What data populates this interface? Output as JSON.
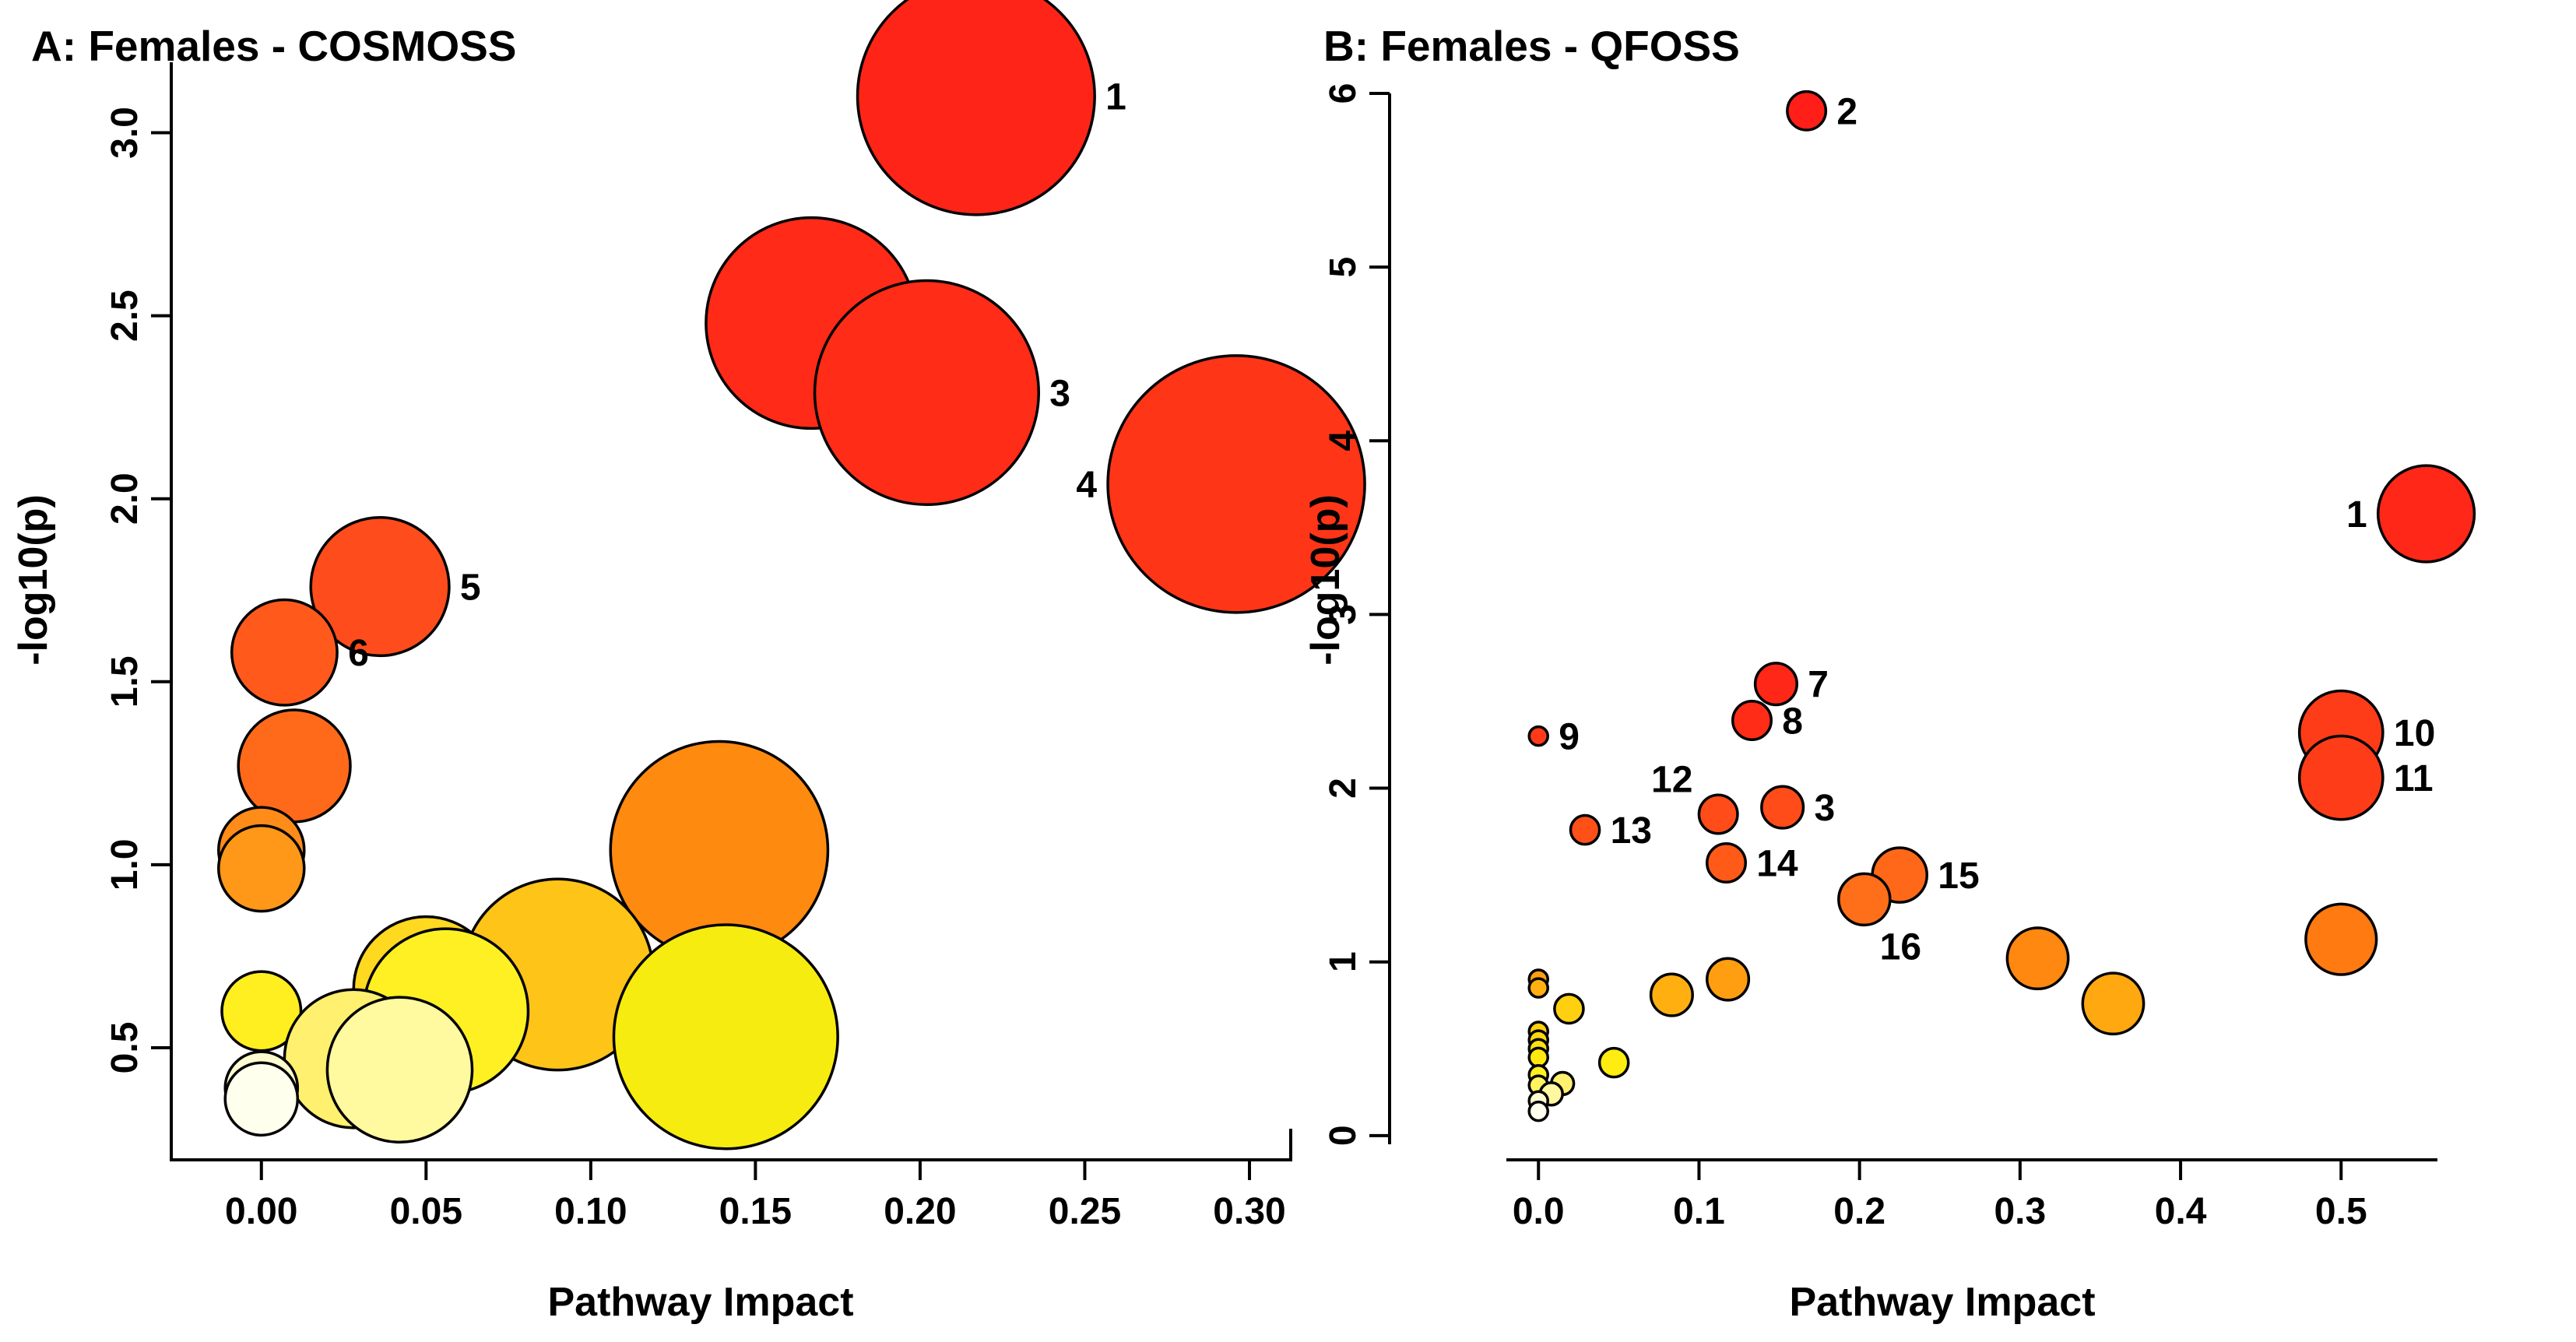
{
  "chart_data": [
    {
      "type": "scatter",
      "title": "A: Females - COSMOSS",
      "xlabel": "Pathway Impact",
      "ylabel": "-log10(p)",
      "xlim": [
        -0.012,
        0.3
      ],
      "ylim": [
        0.3,
        3.15
      ],
      "xticks": [
        {
          "v": 0.0,
          "label": "0.00"
        },
        {
          "v": 0.05,
          "label": "0.05"
        },
        {
          "v": 0.1,
          "label": "0.10"
        },
        {
          "v": 0.15,
          "label": "0.15"
        },
        {
          "v": 0.2,
          "label": "0.20"
        },
        {
          "v": 0.25,
          "label": "0.25"
        },
        {
          "v": 0.3,
          "label": "0.30"
        }
      ],
      "yticks": [
        {
          "v": 0.5,
          "label": "0.5"
        },
        {
          "v": 1.0,
          "label": "1.0"
        },
        {
          "v": 1.5,
          "label": "1.5"
        },
        {
          "v": 2.0,
          "label": "2.0"
        },
        {
          "v": 2.5,
          "label": "2.5"
        },
        {
          "v": 3.0,
          "label": "3.0"
        }
      ],
      "points": [
        {
          "x": 0.217,
          "y": 3.1,
          "r": 0.036,
          "color": "#ff2418",
          "label": "1",
          "pos": "right"
        },
        {
          "x": 0.167,
          "y": 2.48,
          "r": 0.032,
          "color": "#ff2a18",
          "label": "2",
          "pos": "right"
        },
        {
          "x": 0.202,
          "y": 2.29,
          "r": 0.034,
          "color": "#ff2c18",
          "label": "3",
          "pos": "right"
        },
        {
          "x": 0.296,
          "y": 2.04,
          "r": 0.039,
          "color": "#ff3518",
          "label": "4",
          "pos": "left"
        },
        {
          "x": 0.036,
          "y": 1.76,
          "r": 0.021,
          "color": "#ff4c1c",
          "label": "5",
          "pos": "right"
        },
        {
          "x": 0.007,
          "y": 1.58,
          "r": 0.016,
          "color": "#ff5a1c",
          "label": "6",
          "pos": "right"
        },
        {
          "x": 0.01,
          "y": 1.27,
          "r": 0.017,
          "color": "#ff6a1a",
          "label": "",
          "pos": "none"
        },
        {
          "x": 0.0,
          "y": 1.04,
          "r": 0.013,
          "color": "#ff8c18",
          "label": "",
          "pos": "none"
        },
        {
          "x": 0.0,
          "y": 0.99,
          "r": 0.013,
          "color": "#ff9818",
          "label": "",
          "pos": "none"
        },
        {
          "x": 0.139,
          "y": 1.04,
          "r": 0.033,
          "color": "#ff8a10",
          "label": "",
          "pos": "none"
        },
        {
          "x": 0.09,
          "y": 0.7,
          "r": 0.029,
          "color": "#ffc418",
          "label": "",
          "pos": "none"
        },
        {
          "x": 0.05,
          "y": 0.66,
          "r": 0.022,
          "color": "#ffd820",
          "label": "",
          "pos": "none"
        },
        {
          "x": 0.056,
          "y": 0.6,
          "r": 0.025,
          "color": "#fff024",
          "label": "",
          "pos": "none"
        },
        {
          "x": 0.141,
          "y": 0.53,
          "r": 0.034,
          "color": "#f6ec10",
          "label": "",
          "pos": "none"
        },
        {
          "x": 0.0,
          "y": 0.6,
          "r": 0.012,
          "color": "#ffee20",
          "label": "",
          "pos": "none"
        },
        {
          "x": 0.028,
          "y": 0.47,
          "r": 0.021,
          "color": "#fff070",
          "label": "",
          "pos": "none"
        },
        {
          "x": 0.042,
          "y": 0.44,
          "r": 0.022,
          "color": "#fff9a0",
          "label": "",
          "pos": "none"
        },
        {
          "x": 0.0,
          "y": 0.39,
          "r": 0.011,
          "color": "#fffbd0",
          "label": "",
          "pos": "none"
        },
        {
          "x": 0.0,
          "y": 0.36,
          "r": 0.011,
          "color": "#ffffee",
          "label": "",
          "pos": "none"
        }
      ]
    },
    {
      "type": "scatter",
      "title": "B: Females - QFOSS",
      "xlabel": "Pathway Impact",
      "ylabel": "-log10(p)",
      "xlim": [
        -0.02,
        0.56
      ],
      "ylim": [
        -0.05,
        6.0
      ],
      "xticks": [
        {
          "v": 0.0,
          "label": "0.0"
        },
        {
          "v": 0.1,
          "label": "0.1"
        },
        {
          "v": 0.2,
          "label": "0.2"
        },
        {
          "v": 0.3,
          "label": "0.3"
        },
        {
          "v": 0.4,
          "label": "0.4"
        },
        {
          "v": 0.5,
          "label": "0.5"
        }
      ],
      "yticks": [
        {
          "v": 0,
          "label": "0"
        },
        {
          "v": 1,
          "label": "1"
        },
        {
          "v": 2,
          "label": "2"
        },
        {
          "v": 3,
          "label": "3"
        },
        {
          "v": 4,
          "label": "4"
        },
        {
          "v": 5,
          "label": "5"
        },
        {
          "v": 6,
          "label": "6"
        }
      ],
      "points": [
        {
          "x": 0.167,
          "y": 5.9,
          "r": 0.012,
          "color": "#ff1e18",
          "label": "2",
          "pos": "right"
        },
        {
          "x": 0.553,
          "y": 3.58,
          "r": 0.03,
          "color": "#ff2818",
          "label": "1",
          "pos": "left"
        },
        {
          "x": 0.148,
          "y": 2.6,
          "r": 0.013,
          "color": "#ff2818",
          "label": "7",
          "pos": "right"
        },
        {
          "x": 0.133,
          "y": 2.39,
          "r": 0.012,
          "color": "#ff2c18",
          "label": "8",
          "pos": "right"
        },
        {
          "x": 0.0,
          "y": 2.3,
          "r": 0.005,
          "color": "#ff3a18",
          "label": "9",
          "pos": "right"
        },
        {
          "x": 0.5,
          "y": 2.32,
          "r": 0.026,
          "color": "#ff3c18",
          "label": "10",
          "pos": "right"
        },
        {
          "x": 0.5,
          "y": 2.06,
          "r": 0.026,
          "color": "#ff3c18",
          "label": "11",
          "pos": "right"
        },
        {
          "x": 0.112,
          "y": 1.85,
          "r": 0.012,
          "color": "#ff4c18",
          "label": "12",
          "pos": "upleft"
        },
        {
          "x": 0.152,
          "y": 1.89,
          "r": 0.013,
          "color": "#ff4c18",
          "label": "3",
          "pos": "right"
        },
        {
          "x": 0.029,
          "y": 1.76,
          "r": 0.009,
          "color": "#ff5018",
          "label": "13",
          "pos": "right"
        },
        {
          "x": 0.117,
          "y": 1.57,
          "r": 0.012,
          "color": "#ff5a18",
          "label": "14",
          "pos": "right"
        },
        {
          "x": 0.225,
          "y": 1.5,
          "r": 0.017,
          "color": "#ff6818",
          "label": "15",
          "pos": "right"
        },
        {
          "x": 0.203,
          "y": 1.36,
          "r": 0.016,
          "color": "#ff6e18",
          "label": "16",
          "pos": "downright"
        },
        {
          "x": 0.5,
          "y": 1.13,
          "r": 0.022,
          "color": "#ff7a10",
          "label": "",
          "pos": "none"
        },
        {
          "x": 0.311,
          "y": 1.02,
          "r": 0.019,
          "color": "#ff8810",
          "label": "",
          "pos": "none"
        },
        {
          "x": 0.358,
          "y": 0.76,
          "r": 0.019,
          "color": "#ffa810",
          "label": "",
          "pos": "none"
        },
        {
          "x": 0.118,
          "y": 0.9,
          "r": 0.013,
          "color": "#ff9e10",
          "label": "",
          "pos": "none"
        },
        {
          "x": 0.083,
          "y": 0.81,
          "r": 0.013,
          "color": "#ffb010",
          "label": "",
          "pos": "none"
        },
        {
          "x": 0.019,
          "y": 0.73,
          "r": 0.009,
          "color": "#ffd010",
          "label": "",
          "pos": "none"
        },
        {
          "x": 0.047,
          "y": 0.42,
          "r": 0.009,
          "color": "#ffec10",
          "label": "",
          "pos": "none"
        },
        {
          "x": 0.0,
          "y": 0.9,
          "r": 0.005,
          "color": "#ffa010",
          "label": "",
          "pos": "none"
        },
        {
          "x": 0.0,
          "y": 0.85,
          "r": 0.005,
          "color": "#ffb010",
          "label": "",
          "pos": "none"
        },
        {
          "x": 0.0,
          "y": 0.6,
          "r": 0.005,
          "color": "#ffd010",
          "label": "",
          "pos": "none"
        },
        {
          "x": 0.0,
          "y": 0.55,
          "r": 0.005,
          "color": "#ffd810",
          "label": "",
          "pos": "none"
        },
        {
          "x": 0.0,
          "y": 0.5,
          "r": 0.005,
          "color": "#ffe010",
          "label": "",
          "pos": "none"
        },
        {
          "x": 0.0,
          "y": 0.45,
          "r": 0.005,
          "color": "#ffe810",
          "label": "",
          "pos": "none"
        },
        {
          "x": 0.0,
          "y": 0.35,
          "r": 0.005,
          "color": "#fff020",
          "label": "",
          "pos": "none"
        },
        {
          "x": 0.0,
          "y": 0.29,
          "r": 0.005,
          "color": "#fff460",
          "label": "",
          "pos": "none"
        },
        {
          "x": 0.015,
          "y": 0.3,
          "r": 0.007,
          "color": "#fff070",
          "label": "",
          "pos": "none"
        },
        {
          "x": 0.008,
          "y": 0.24,
          "r": 0.007,
          "color": "#fff8a0",
          "label": "",
          "pos": "none"
        },
        {
          "x": 0.0,
          "y": 0.2,
          "r": 0.005,
          "color": "#fffbd0",
          "label": "",
          "pos": "none"
        },
        {
          "x": 0.0,
          "y": 0.14,
          "r": 0.005,
          "color": "#ffffee",
          "label": "",
          "pos": "none"
        }
      ]
    }
  ]
}
